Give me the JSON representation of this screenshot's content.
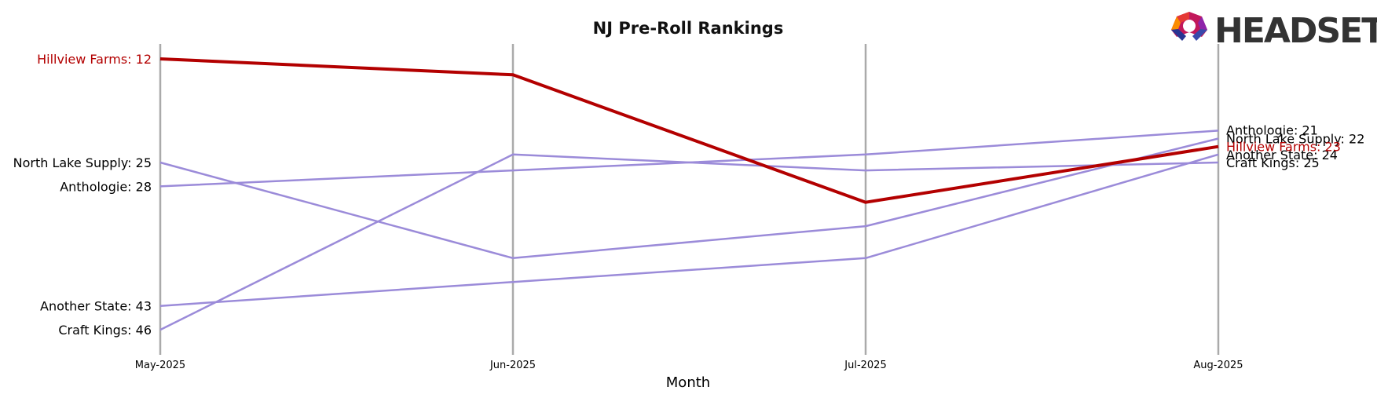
{
  "chart_data": {
    "type": "line",
    "title": "NJ Pre-Roll Rankings",
    "xlabel": "Month",
    "ylabel": "",
    "x": [
      "May-2025",
      "Jun-2025",
      "Jul-2025",
      "Aug-2025"
    ],
    "y_inverted": true,
    "ylim": [
      48,
      10
    ],
    "highlight_color": "#b30000",
    "other_color": "#9b8bd9",
    "series": [
      {
        "name": "Hillview Farms",
        "values": [
          12,
          14,
          30,
          23
        ],
        "highlight": true,
        "start_label": "Hillview Farms: 12",
        "end_label": "Hillview Farms: 23"
      },
      {
        "name": "North Lake Supply",
        "values": [
          25,
          37,
          33,
          22
        ],
        "highlight": false,
        "start_label": "North Lake Supply: 25",
        "end_label": "North Lake Supply: 22"
      },
      {
        "name": "Anthologie",
        "values": [
          28,
          26,
          24,
          21
        ],
        "highlight": false,
        "start_label": "Anthologie: 28",
        "end_label": "Anthologie: 21"
      },
      {
        "name": "Another State",
        "values": [
          43,
          40,
          37,
          24
        ],
        "highlight": false,
        "start_label": "Another State: 43",
        "end_label": "Another State: 24"
      },
      {
        "name": "Craft Kings",
        "values": [
          46,
          24,
          26,
          25
        ],
        "highlight": false,
        "start_label": "Craft Kings: 46",
        "end_label": "Craft Kings: 25"
      }
    ]
  },
  "logo": {
    "text": "HEADSET"
  }
}
